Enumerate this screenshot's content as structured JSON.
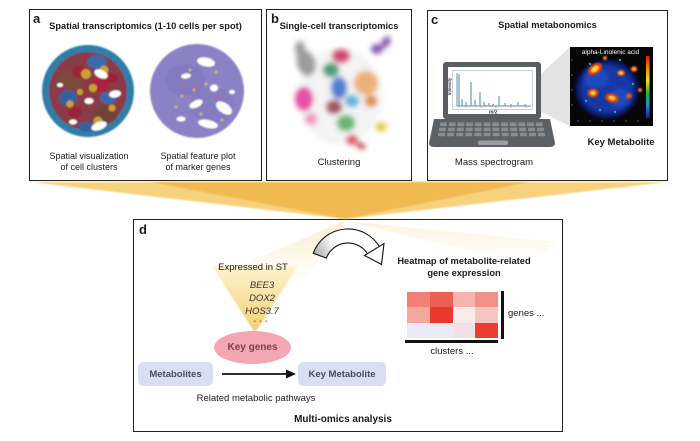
{
  "colors": {
    "accent_gold": "#f2bc45",
    "funnel_core": "#eda82d",
    "cone_light": "#fdf3cc",
    "cone_deep": "#f2cc6a",
    "key_genes_fill": "#f2a7b3",
    "key_genes_text": "#79414a",
    "box_fill": "#d9dff3",
    "box_text": "#474d59",
    "panel_border": "#222222"
  },
  "panels": {
    "a": {
      "label": "a",
      "title": "Spatial transcriptomics (1-10 cells per spot)",
      "images": [
        {
          "name": "cell-clusters-tissue",
          "caption_line1": "Spatial visualization",
          "caption_line2": "of cell clusters"
        },
        {
          "name": "marker-genes-tissue",
          "caption_line1": "Spatial feature plot",
          "caption_line2": "of marker genes"
        }
      ]
    },
    "b": {
      "label": "b",
      "title": "Single-cell transcriptomics",
      "caption": "Clustering"
    },
    "c": {
      "label": "c",
      "title": "Spatial metabonomics",
      "laptop_caption": "Mass spectrogram",
      "spectrum": {
        "ylabel": "Intensity",
        "xlabel": "m/z"
      },
      "metabolite_image": {
        "title": "alpha-Linolenic acid",
        "caption": "Key Metabolite"
      }
    },
    "d": {
      "label": "d",
      "funnel_label": "Expressed in ST",
      "genes": [
        "BEE3",
        "DOX2",
        "HOS3.7"
      ],
      "genes_ellipsis": "...",
      "key_genes_label": "Key genes",
      "metabolites_label": "Metabolites",
      "key_metabolite_label": "Key Metabolite",
      "pathways_label": "Related metabolic pathways",
      "footer_label": "Multi-omics analysis",
      "heatmap": {
        "title_line1": "Heatmap of metabolite-related",
        "title_line2": "gene expression",
        "genes_axis_label": "genes ...",
        "clusters_axis_label": "clusters ...",
        "cells": [
          [
            "#f08078",
            "#ec6054",
            "#f7b4ae",
            "#f1918a"
          ],
          [
            "#f4a69f",
            "#e93a2e",
            "#faeae9",
            "#f7c5c0"
          ],
          [
            "#e8ebf5",
            "#e8ebf5",
            "#f3dfe7",
            "#ed3d31"
          ]
        ]
      }
    }
  }
}
